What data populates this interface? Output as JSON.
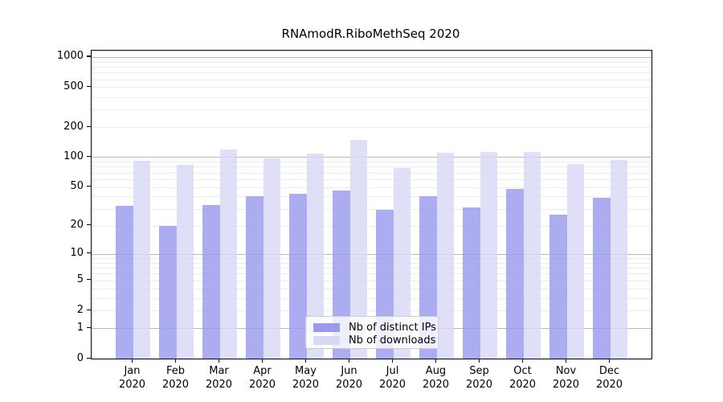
{
  "chart_data": {
    "type": "bar",
    "title": "RNAmodR.RiboMethSeq 2020",
    "categories": [
      "Jan",
      "Feb",
      "Mar",
      "Apr",
      "May",
      "Jun",
      "Jul",
      "Aug",
      "Sep",
      "Oct",
      "Nov",
      "Dec"
    ],
    "x_sublabel": "2020",
    "series": [
      {
        "name": "Nb of distinct IPs",
        "color": "#9a9aee",
        "values": [
          32,
          20,
          33,
          40,
          43,
          46,
          29,
          40,
          31,
          48,
          26,
          39
        ]
      },
      {
        "name": "Nb of downloads",
        "color": "#d8d8f7",
        "values": [
          92,
          84,
          120,
          97,
          108,
          149,
          78,
          111,
          113,
          112,
          86,
          94
        ]
      }
    ],
    "y_axis": {
      "scale": "log1p",
      "ticks": [
        0,
        1,
        2,
        5,
        10,
        20,
        50,
        100,
        200,
        500,
        1000
      ],
      "max": 1156
    },
    "xlabel": "",
    "ylabel": "",
    "grid": true,
    "legend_position": "lower center",
    "colors": {
      "major_grid": "#b8b8b8",
      "minor_grid": "#ececec",
      "axis": "#000000",
      "background": "#ffffff"
    }
  }
}
